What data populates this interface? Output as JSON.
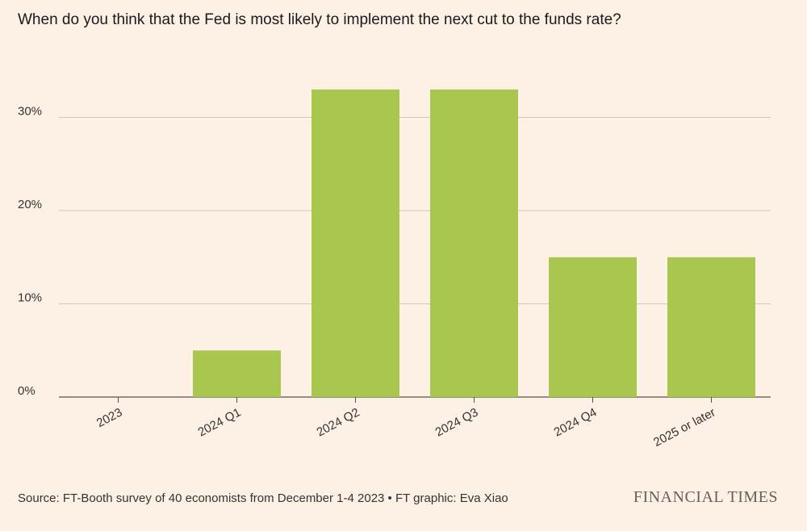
{
  "chart_data": {
    "type": "bar",
    "title": "When do you think that the Fed is most likely to implement the next cut to the funds rate?",
    "categories": [
      "2023",
      "2024 Q1",
      "2024 Q2",
      "2024 Q3",
      "2024 Q4",
      "2025 or later"
    ],
    "values": [
      0,
      5,
      33,
      33,
      15,
      15
    ],
    "ylim": [
      0,
      35
    ],
    "yticks": [
      0,
      10,
      20,
      30
    ],
    "ytick_labels": [
      "0%",
      "10%",
      "20%",
      "30%"
    ],
    "xlabel": "",
    "ylabel": "",
    "grid": true,
    "bar_color": "#a9c74e"
  },
  "footer": {
    "source": "Source: FT-Booth survey of 40 economists from December 1-4 2023 • FT graphic: Eva Xiao",
    "brand": "FINANCIAL TIMES"
  }
}
